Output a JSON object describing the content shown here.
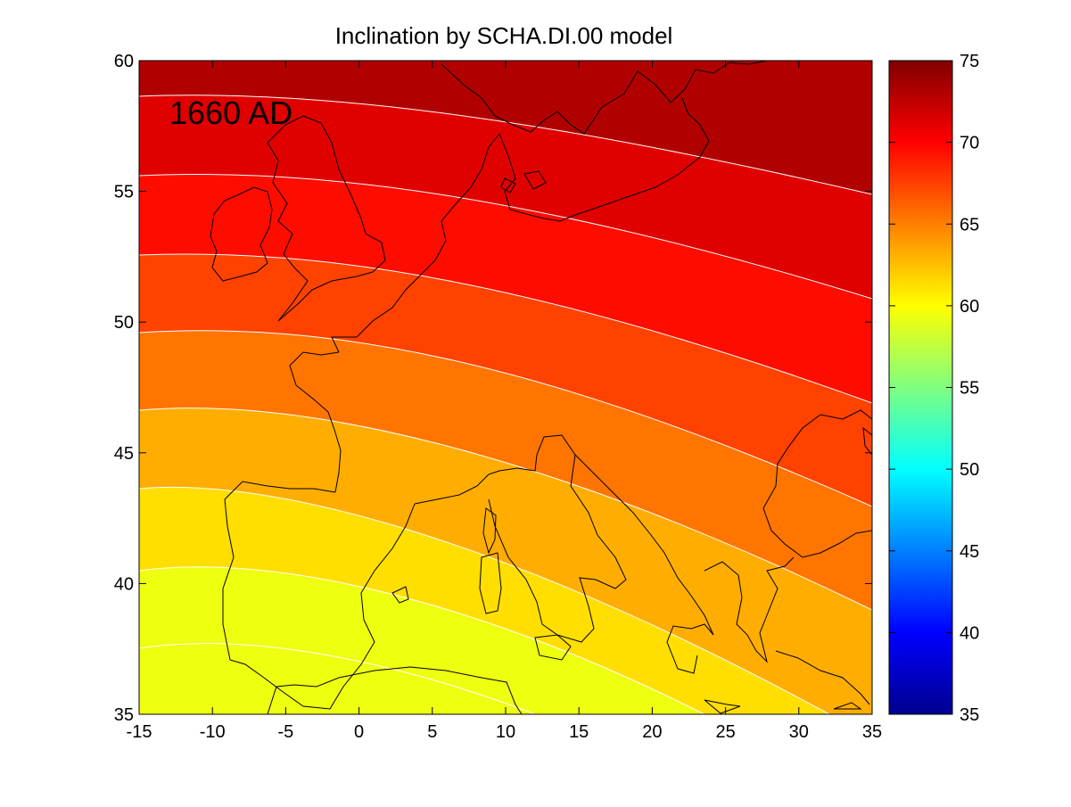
{
  "title": "Inclination by SCHA.DI.00 model",
  "annotation": "1660 AD",
  "map": {
    "x_range": [
      -15,
      35
    ],
    "y_range": [
      35,
      60
    ],
    "x_ticks": [
      -15,
      -10,
      -5,
      0,
      5,
      10,
      15,
      20,
      25,
      30,
      35
    ],
    "y_ticks": [
      35,
      40,
      45,
      50,
      55,
      60
    ],
    "contour_levels": [
      60,
      62.5,
      65,
      67.5,
      70,
      72.5,
      75
    ],
    "contour_line_color": "#ffffff",
    "coastline_color": "#000000"
  },
  "colorbar": {
    "range": [
      35,
      75
    ],
    "ticks": [
      35,
      40,
      45,
      50,
      55,
      60,
      65,
      70,
      75
    ],
    "colormap": "jet"
  },
  "band_colors": {
    "below_60": "#efff10",
    "60_62_5": "#ffde00",
    "62_5_65": "#ffad00",
    "65_67_5": "#ff7500",
    "67_5_70": "#ff4200",
    "70_72_5": "#ff0c00",
    "72_5_75": "#e00000",
    "above_75": "#b10000"
  }
}
